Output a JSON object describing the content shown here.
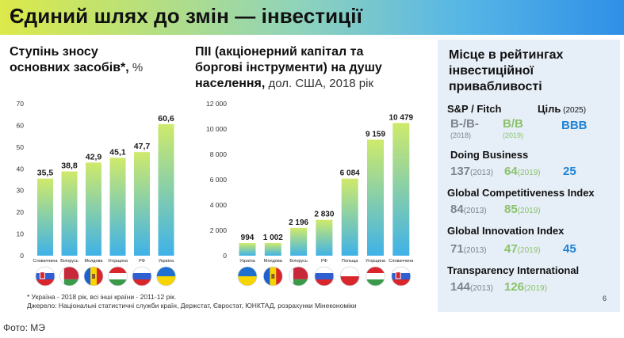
{
  "header": {
    "title": "Єдиний шлях до змін — інвестиції"
  },
  "panel1": {
    "title_l1": "Ступінь зносу",
    "title_l2": "основних засобів*,",
    "unit": " %"
  },
  "panel2": {
    "title_l1": "ПІІ (акціонерний капітал та",
    "title_l2": "боргові інструменти) на душу",
    "title_l3": "населення,",
    "unit": " дол. США, 2018 рік"
  },
  "panel3": {
    "title_l1": "Місце в рейтингах",
    "title_l2": "інвестиційної",
    "title_l3": "привабливості",
    "sp": {
      "label": "S&P / Fitch",
      "target_label": "Ціль",
      "target_year": " (2025)",
      "v1": "B-/B-",
      "y1": "(2018)",
      "v2": "B/B",
      "y2": "(2019)",
      "target": "BBB"
    },
    "db": {
      "label": "Doing Business",
      "v1": "137",
      "y1": "(2013)",
      "v2": "64",
      "y2": "(2019)",
      "target": "25"
    },
    "gci": {
      "label": "Global Competitiveness Index",
      "v1": "84",
      "y1": "(2013)",
      "v2": "85",
      "y2": "(2019)"
    },
    "gii": {
      "label": "Global Innovation Index",
      "v1": "71",
      "y1": "(2013)",
      "v2": "47",
      "y2": "(2019)",
      "target": "45"
    },
    "ti": {
      "label": "Transparency International",
      "v1": "144",
      "y1": "(2013)",
      "v2": "126",
      "y2": "(2019)"
    }
  },
  "notes": {
    "line1": "* Україна - 2018 рік, всі інші країни - 2011-12 рік.",
    "line2": "Джерело: Національні статистичні служби країн, Держстат, Євростат, ЮНКТАД, розрахунки Мінекономіки"
  },
  "page_number": "6",
  "caption": "Фото: МЭ",
  "colors": {
    "bar_top": "#cfea6b",
    "bar_bottom": "#3fb2e8",
    "gray": "#7e848d",
    "green": "#8ac36a",
    "blue": "#1f83d6",
    "panel_bg": "#e6eef7"
  },
  "chart_data": [
    {
      "type": "bar",
      "categories": [
        "Словаччина",
        "Білорусь",
        "Молдова",
        "Угорщина",
        "РФ",
        "Україна"
      ],
      "values": [
        35.5,
        38.8,
        42.9,
        45.1,
        47.7,
        60.6
      ],
      "labels": [
        "35,5",
        "38,8",
        "42,9",
        "45,1",
        "47,7",
        "60,6"
      ],
      "yticks": [
        "0",
        "10",
        "20",
        "30",
        "40",
        "50",
        "60",
        "70"
      ],
      "ylim": [
        0,
        70
      ],
      "flags": [
        "sk",
        "by",
        "md",
        "hu",
        "ru",
        "ua"
      ]
    },
    {
      "type": "bar",
      "categories": [
        "Україна",
        "Молдова",
        "Білорусь",
        "РФ",
        "Польща",
        "Угорщина",
        "Словаччина"
      ],
      "values": [
        994,
        1002,
        2196,
        2830,
        6084,
        9159,
        10479
      ],
      "labels": [
        "994",
        "1 002",
        "2 196",
        "2 830",
        "6 084",
        "9 159",
        "10 479"
      ],
      "yticks": [
        "0",
        "2 000",
        "4 000",
        "6 000",
        "8 000",
        "10 000",
        "12 000"
      ],
      "ylim": [
        0,
        12000
      ],
      "flags": [
        "ua",
        "md",
        "by",
        "ru",
        "pl",
        "hu",
        "sk"
      ]
    }
  ]
}
